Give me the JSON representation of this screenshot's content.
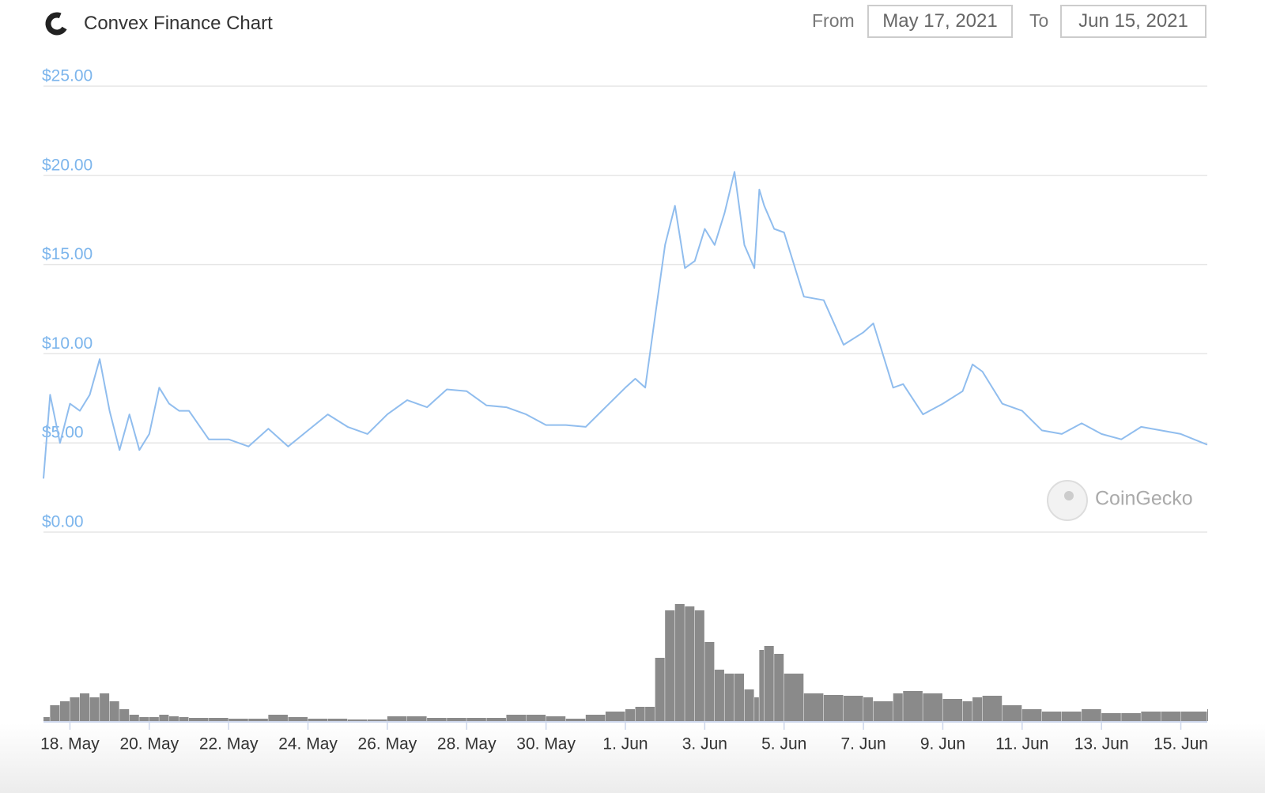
{
  "header": {
    "title": "Convex Finance Chart",
    "from_label": "From",
    "from_date": "May 17, 2021",
    "to_label": "To",
    "to_date": "Jun 15, 2021"
  },
  "watermark": "CoinGecko",
  "chart_data": {
    "type": "line",
    "x": [
      "2021-05-17 08:00",
      "2021-05-17 12:00",
      "2021-05-17 18:00",
      "2021-05-18 00:00",
      "2021-05-18 06:00",
      "2021-05-18 12:00",
      "2021-05-18 18:00",
      "2021-05-19 00:00",
      "2021-05-19 06:00",
      "2021-05-19 12:00",
      "2021-05-19 18:00",
      "2021-05-20 00:00",
      "2021-05-20 06:00",
      "2021-05-20 12:00",
      "2021-05-20 18:00",
      "2021-05-21 00:00",
      "2021-05-21 12:00",
      "2021-05-22 00:00",
      "2021-05-22 12:00",
      "2021-05-23 00:00",
      "2021-05-23 12:00",
      "2021-05-24 00:00",
      "2021-05-24 12:00",
      "2021-05-25 00:00",
      "2021-05-25 12:00",
      "2021-05-26 00:00",
      "2021-05-26 12:00",
      "2021-05-27 00:00",
      "2021-05-27 12:00",
      "2021-05-28 00:00",
      "2021-05-28 12:00",
      "2021-05-29 00:00",
      "2021-05-29 12:00",
      "2021-05-30 00:00",
      "2021-05-30 12:00",
      "2021-05-31 00:00",
      "2021-05-31 12:00",
      "2021-06-01 00:00",
      "2021-06-01 06:00",
      "2021-06-01 12:00",
      "2021-06-01 18:00",
      "2021-06-02 00:00",
      "2021-06-02 06:00",
      "2021-06-02 12:00",
      "2021-06-02 18:00",
      "2021-06-03 00:00",
      "2021-06-03 06:00",
      "2021-06-03 12:00",
      "2021-06-03 18:00",
      "2021-06-04 00:00",
      "2021-06-04 06:00",
      "2021-06-04 09:00",
      "2021-06-04 12:00",
      "2021-06-04 18:00",
      "2021-06-05 00:00",
      "2021-06-05 12:00",
      "2021-06-06 00:00",
      "2021-06-06 12:00",
      "2021-06-07 00:00",
      "2021-06-07 06:00",
      "2021-06-07 18:00",
      "2021-06-08 00:00",
      "2021-06-08 12:00",
      "2021-06-09 00:00",
      "2021-06-09 12:00",
      "2021-06-09 18:00",
      "2021-06-10 00:00",
      "2021-06-10 12:00",
      "2021-06-11 00:00",
      "2021-06-11 12:00",
      "2021-06-12 00:00",
      "2021-06-12 12:00",
      "2021-06-13 00:00",
      "2021-06-13 12:00",
      "2021-06-14 00:00",
      "2021-06-14 12:00",
      "2021-06-15 00:00",
      "2021-06-15 16:00"
    ],
    "values": [
      3.0,
      7.7,
      5.0,
      7.2,
      6.8,
      7.7,
      9.7,
      6.8,
      4.6,
      6.6,
      4.6,
      5.5,
      8.1,
      7.2,
      6.8,
      6.8,
      5.2,
      5.2,
      4.8,
      5.8,
      4.8,
      5.7,
      6.6,
      5.9,
      5.5,
      6.6,
      7.4,
      7.0,
      8.0,
      7.9,
      7.1,
      7.0,
      6.6,
      6.0,
      6.0,
      5.9,
      7.0,
      8.1,
      8.6,
      8.1,
      12.1,
      16.1,
      18.3,
      14.8,
      15.2,
      17.0,
      16.1,
      17.9,
      20.2,
      16.1,
      14.8,
      19.2,
      18.3,
      17.0,
      16.8,
      13.2,
      13.0,
      10.5,
      11.2,
      11.7,
      8.1,
      8.3,
      6.6,
      7.2,
      7.9,
      9.4,
      9.0,
      7.2,
      6.8,
      5.7,
      5.5,
      6.1,
      5.5,
      5.2,
      5.9,
      5.7,
      5.5,
      4.9
    ],
    "color": "#90bdee",
    "volume_values": [
      5,
      20,
      25,
      30,
      35,
      30,
      35,
      25,
      15,
      8,
      5,
      5,
      8,
      6,
      5,
      4,
      4,
      3,
      3,
      8,
      5,
      3,
      3,
      2,
      2,
      6,
      6,
      4,
      4,
      4,
      4,
      8,
      8,
      6,
      3,
      8,
      12,
      15,
      18,
      18,
      80,
      140,
      148,
      145,
      140,
      100,
      65,
      60,
      60,
      40,
      30,
      90,
      95,
      85,
      60,
      35,
      33,
      32,
      30,
      25,
      35,
      38,
      35,
      28,
      25,
      30,
      32,
      20,
      15,
      12,
      12,
      15,
      10,
      10,
      12,
      12,
      12,
      15
    ],
    "volume_color": "#8a8a8a",
    "xlim": [
      "2021-05-17 08:00",
      "2021-06-15 16:00"
    ],
    "xticks": [
      {
        "value": "2021-05-18",
        "label": "18. May"
      },
      {
        "value": "2021-05-20",
        "label": "20. May"
      },
      {
        "value": "2021-05-22",
        "label": "22. May"
      },
      {
        "value": "2021-05-24",
        "label": "24. May"
      },
      {
        "value": "2021-05-26",
        "label": "26. May"
      },
      {
        "value": "2021-05-28",
        "label": "28. May"
      },
      {
        "value": "2021-05-30",
        "label": "30. May"
      },
      {
        "value": "2021-06-01",
        "label": "1. Jun"
      },
      {
        "value": "2021-06-03",
        "label": "3. Jun"
      },
      {
        "value": "2021-06-05",
        "label": "5. Jun"
      },
      {
        "value": "2021-06-07",
        "label": "7. Jun"
      },
      {
        "value": "2021-06-09",
        "label": "9. Jun"
      },
      {
        "value": "2021-06-11",
        "label": "11. Jun"
      },
      {
        "value": "2021-06-13",
        "label": "13. Jun"
      },
      {
        "value": "2021-06-15",
        "label": "15. Jun"
      }
    ],
    "ylim": [
      0,
      25
    ],
    "yticks": [
      {
        "value": 0,
        "label": "$0.00"
      },
      {
        "value": 5,
        "label": "$5.00"
      },
      {
        "value": 10,
        "label": "$10.00"
      },
      {
        "value": 15,
        "label": "$15.00"
      },
      {
        "value": 20,
        "label": "$20.00"
      },
      {
        "value": 25,
        "label": "$25.00"
      }
    ],
    "grid": true
  }
}
